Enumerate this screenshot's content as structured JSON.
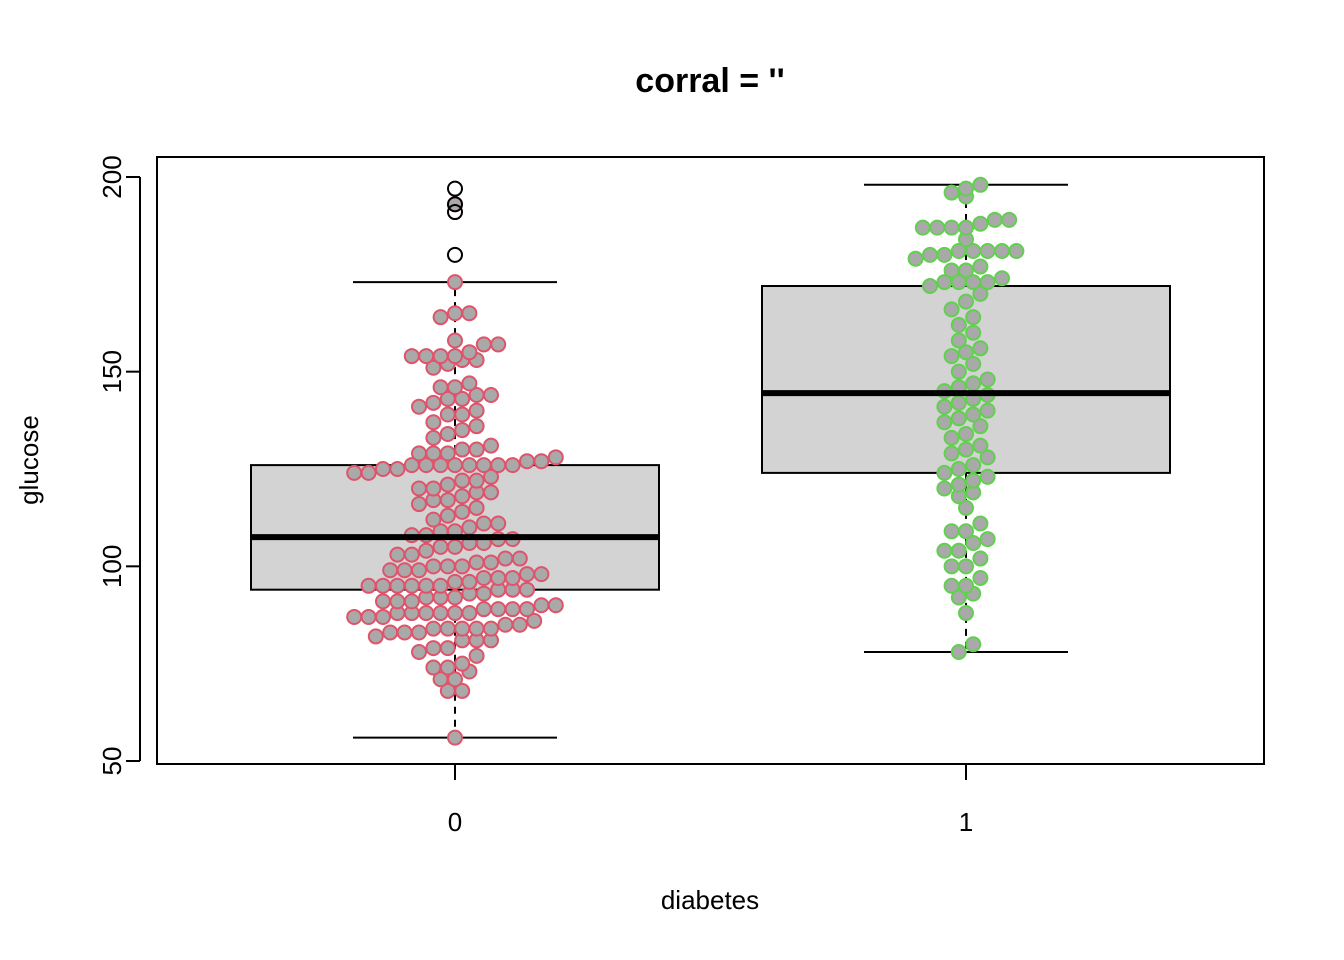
{
  "chart_data": {
    "type": "box",
    "title": "corral = ''",
    "xlabel": "diabetes",
    "ylabel": "glucose",
    "categories": [
      "0",
      "1"
    ],
    "ylim": [
      50,
      205
    ],
    "yticks": [
      50,
      100,
      150,
      200
    ],
    "box_fill": "#d3d3d3",
    "grid": false,
    "groups": [
      {
        "name": "0",
        "point_color": "#df536b",
        "point_fill": "#a9a9a9",
        "box": {
          "lower_whisker": 56,
          "q1": 94,
          "median": 107.5,
          "q3": 126,
          "upper_whisker": 173
        },
        "outliers": [
          180,
          191,
          193,
          197
        ],
        "points": [
          56,
          68,
          68,
          71,
          71,
          73,
          74,
          74,
          75,
          77,
          78,
          79,
          79,
          81,
          81,
          81,
          82,
          83,
          83,
          83,
          84,
          84,
          84,
          84,
          84,
          85,
          85,
          86,
          87,
          87,
          87,
          88,
          88,
          88,
          88,
          88,
          88,
          89,
          89,
          89,
          89,
          90,
          90,
          91,
          91,
          91,
          92,
          92,
          92,
          93,
          93,
          94,
          94,
          94,
          95,
          95,
          95,
          95,
          95,
          95,
          96,
          96,
          97,
          97,
          97,
          98,
          98,
          99,
          99,
          99,
          100,
          100,
          100,
          101,
          101,
          102,
          102,
          103,
          103,
          104,
          105,
          105,
          106,
          106,
          107,
          107,
          108,
          108,
          109,
          109,
          110,
          111,
          111,
          112,
          113,
          114,
          115,
          116,
          117,
          117,
          118,
          119,
          119,
          120,
          120,
          121,
          122,
          122,
          123,
          124,
          124,
          125,
          125,
          126,
          126,
          126,
          126,
          126,
          126,
          126,
          126,
          127,
          127,
          128,
          129,
          129,
          129,
          130,
          130,
          131,
          133,
          134,
          135,
          136,
          137,
          139,
          139,
          140,
          141,
          142,
          143,
          143,
          144,
          144,
          146,
          146,
          147,
          151,
          152,
          153,
          153,
          154,
          154,
          154,
          154,
          155,
          157,
          157,
          158,
          164,
          165,
          165,
          173,
          193
        ]
      },
      {
        "name": "1",
        "point_color": "#61d04f",
        "point_fill": "#a9a9a9",
        "box": {
          "lower_whisker": 78,
          "q1": 124,
          "median": 144.5,
          "q3": 172,
          "upper_whisker": 198
        },
        "outliers": [],
        "points": [
          78,
          80,
          88,
          92,
          93,
          95,
          95,
          97,
          100,
          100,
          102,
          104,
          104,
          106,
          107,
          109,
          109,
          111,
          115,
          118,
          119,
          120,
          121,
          122,
          123,
          124,
          125,
          126,
          128,
          129,
          130,
          131,
          133,
          134,
          136,
          137,
          138,
          139,
          140,
          141,
          142,
          143,
          144,
          145,
          146,
          147,
          148,
          150,
          152,
          154,
          155,
          156,
          158,
          160,
          162,
          164,
          166,
          168,
          170,
          172,
          173,
          173,
          173,
          173,
          174,
          176,
          176,
          177,
          179,
          180,
          180,
          181,
          181,
          181,
          181,
          181,
          184,
          187,
          187,
          187,
          187,
          188,
          189,
          189,
          195,
          196,
          197,
          198
        ]
      }
    ]
  }
}
